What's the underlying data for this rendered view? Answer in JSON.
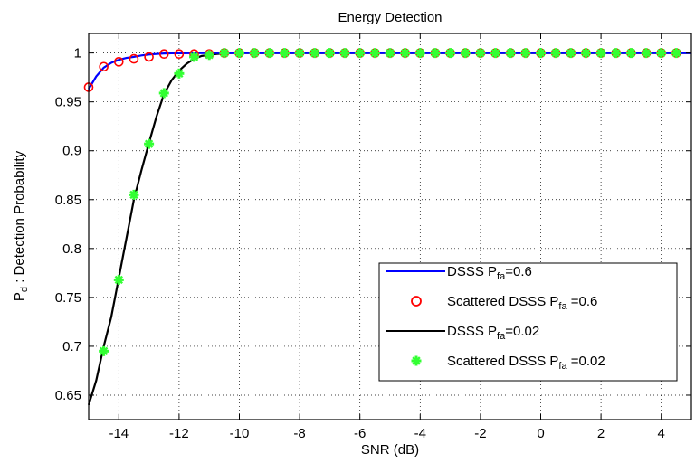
{
  "chart_data": {
    "type": "line",
    "title": "Energy Detection",
    "xlabel": "SNR (dB)",
    "ylabel": {
      "main": "P",
      "sub": "d",
      "rest": " : Detection Probability"
    },
    "xlim": [
      -15,
      5
    ],
    "ylim": [
      0.625,
      1.02
    ],
    "x_ticks": [
      -14,
      -12,
      -10,
      -8,
      -6,
      -4,
      -2,
      0,
      2,
      4
    ],
    "x_tick_labels": [
      "-14",
      "-12",
      "-10",
      "-8",
      "-6",
      "-4",
      "-2",
      "0",
      "2",
      "4"
    ],
    "y_ticks": [
      0.65,
      0.7,
      0.75,
      0.8,
      0.85,
      0.9,
      0.95,
      1
    ],
    "y_tick_labels": [
      "0.65",
      "0.7",
      "0.75",
      "0.8",
      "0.85",
      "0.9",
      "0.95",
      "1"
    ],
    "grid": true,
    "legend_position": "lower-right",
    "series": [
      {
        "name": "DSSS P",
        "name_sub": "fa",
        "name_rest": "=0.6",
        "style": "line",
        "color": "#0000ff",
        "x": [
          -15,
          -14.75,
          -14.5,
          -14.25,
          -14,
          -13.75,
          -13.5,
          -13.25,
          -13,
          -12.75,
          -12.5,
          -12.25,
          -12,
          -11.5,
          -11,
          -10.5,
          -10,
          -5,
          0,
          5
        ],
        "y": [
          0.963,
          0.976,
          0.985,
          0.99,
          0.993,
          0.995,
          0.996,
          0.9975,
          0.9985,
          0.999,
          0.9995,
          0.9997,
          0.9998,
          0.9999,
          1,
          1,
          1,
          1,
          1,
          1
        ]
      },
      {
        "name": "Scattered DSSS  P",
        "name_sub": "fa",
        "name_rest": " =0.6",
        "style": "marker-circle",
        "color": "#ff0000",
        "x": [
          -15,
          -14.5,
          -14,
          -13.5,
          -13,
          -12.5,
          -12,
          -11.5,
          -11,
          -10.5,
          -10,
          -9.5,
          -9,
          -8.5,
          -8,
          -7.5,
          -7,
          -6.5,
          -6,
          -5.5,
          -5,
          -4.5,
          -4,
          -3.5,
          -3,
          -2.5,
          -2,
          -1.5,
          -1,
          -0.5,
          0,
          0.5,
          1,
          1.5,
          2,
          2.5,
          3,
          3.5,
          4,
          4.5
        ],
        "y": [
          0.965,
          0.986,
          0.991,
          0.994,
          0.996,
          0.999,
          0.999,
          0.999,
          0.999,
          1,
          1,
          1,
          1,
          1,
          1,
          1,
          1,
          1,
          1,
          1,
          1,
          1,
          1,
          1,
          1,
          1,
          1,
          1,
          1,
          1,
          1,
          1,
          1,
          1,
          1,
          1,
          1,
          1,
          1,
          1
        ]
      },
      {
        "name": "DSSS P",
        "name_sub": "fa",
        "name_rest": "=0.02",
        "style": "line",
        "color": "#000000",
        "x": [
          -15,
          -14.75,
          -14.5,
          -14.25,
          -14,
          -13.75,
          -13.5,
          -13.25,
          -13,
          -12.75,
          -12.5,
          -12.25,
          -12,
          -11.75,
          -11.5,
          -11.25,
          -11,
          -10.75,
          -10.5,
          -10.25,
          -10,
          -5,
          0,
          5
        ],
        "y": [
          0.64,
          0.665,
          0.7,
          0.73,
          0.77,
          0.81,
          0.85,
          0.88,
          0.908,
          0.935,
          0.958,
          0.972,
          0.982,
          0.989,
          0.994,
          0.997,
          0.998,
          0.999,
          0.9995,
          1,
          1,
          1,
          1,
          1
        ]
      },
      {
        "name": "Scattered DSSS P",
        "name_sub": "fa",
        "name_rest": " =0.02",
        "style": "marker-star",
        "color": "#33ff33",
        "x": [
          -14.5,
          -14,
          -13.5,
          -13,
          -12.5,
          -12,
          -11.5,
          -11,
          -10.5,
          -10,
          -9.5,
          -9,
          -8.5,
          -8,
          -7.5,
          -7,
          -6.5,
          -6,
          -5.5,
          -5,
          -4.5,
          -4,
          -3.5,
          -3,
          -2.5,
          -2,
          -1.5,
          -1,
          -0.5,
          0,
          0.5,
          1,
          1.5,
          2,
          2.5,
          3,
          3.5,
          4,
          4.5
        ],
        "y": [
          0.695,
          0.768,
          0.855,
          0.907,
          0.959,
          0.979,
          0.996,
          0.998,
          1,
          1,
          1,
          1,
          1,
          1,
          1,
          1,
          1,
          1,
          1,
          1,
          1,
          1,
          1,
          1,
          1,
          1,
          1,
          1,
          1,
          1,
          1,
          1,
          1,
          1,
          1,
          1,
          1,
          1,
          1
        ]
      }
    ]
  }
}
